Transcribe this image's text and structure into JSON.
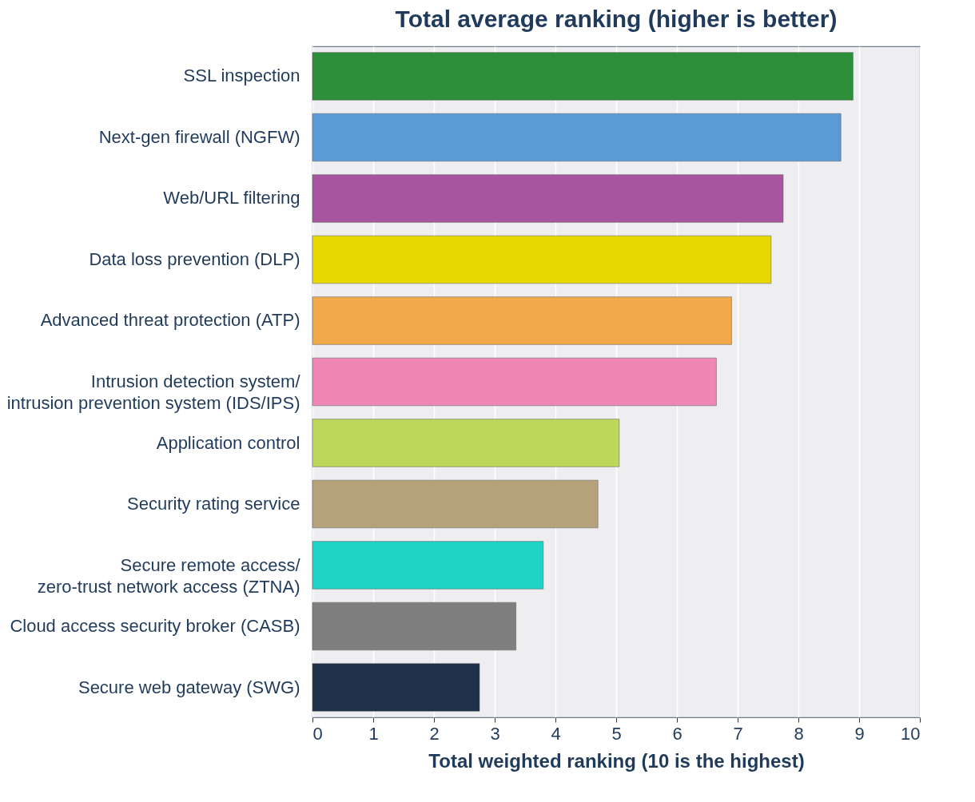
{
  "chart_data": {
    "type": "bar",
    "orientation": "horizontal",
    "title": "Total average ranking (higher is better)",
    "xlabel": "Total weighted ranking (10 is the highest)",
    "categories": [
      "SSL inspection",
      "Next-gen firewall (NGFW)",
      "Web/URL filtering",
      "Data loss prevention (DLP)",
      "Advanced threat protection (ATP)",
      "Intrusion detection system/\nintrusion prevention system (IDS/IPS)",
      "Application control",
      "Security rating service",
      "Secure remote access/\nzero-trust network access (ZTNA)",
      "Cloud access security broker (CASB)",
      "Secure web gateway (SWG)"
    ],
    "values": [
      8.9,
      8.7,
      7.75,
      7.55,
      6.9,
      6.65,
      5.05,
      4.7,
      3.8,
      3.35,
      2.75
    ],
    "colors": [
      "#2e8f3a",
      "#5b9bd5",
      "#a855a0",
      "#e6d800",
      "#f2a94a",
      "#ef86b6",
      "#bcd85a",
      "#b5a27a",
      "#1fd3c4",
      "#7f7f7f",
      "#1f3049"
    ],
    "xlim": [
      0,
      10
    ],
    "xticks": [
      0,
      1,
      2,
      3,
      4,
      5,
      6,
      7,
      8,
      9,
      10
    ],
    "grid": "x"
  }
}
